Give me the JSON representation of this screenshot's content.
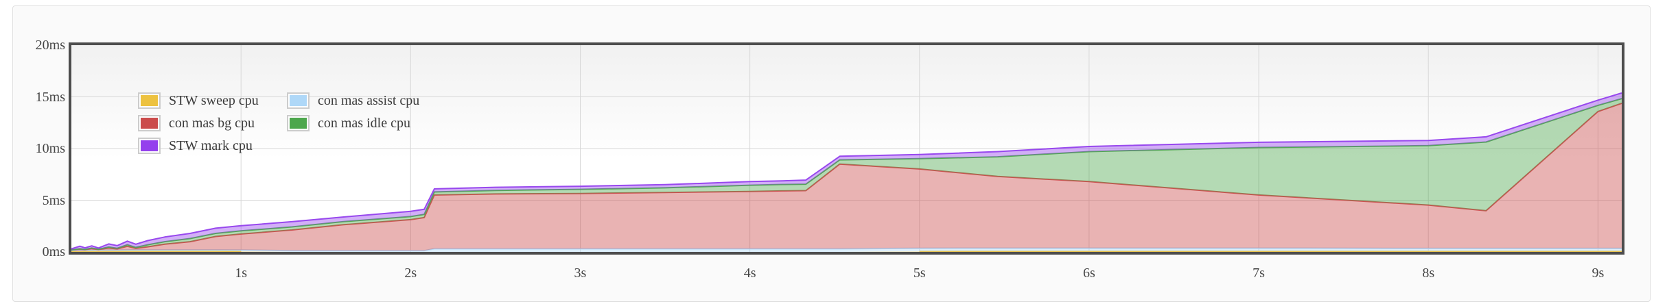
{
  "y_axis": {
    "ticks": [
      {
        "v": 20,
        "label": "20ms"
      },
      {
        "v": 15,
        "label": "15ms"
      },
      {
        "v": 10,
        "label": "10ms"
      },
      {
        "v": 5,
        "label": "5ms"
      },
      {
        "v": 0,
        "label": "0ms"
      }
    ]
  },
  "x_axis": {
    "ticks": [
      {
        "v": 1,
        "label": "1s"
      },
      {
        "v": 2,
        "label": "2s"
      },
      {
        "v": 3,
        "label": "3s"
      },
      {
        "v": 4,
        "label": "4s"
      },
      {
        "v": 5,
        "label": "5s"
      },
      {
        "v": 6,
        "label": "6s"
      },
      {
        "v": 7,
        "label": "7s"
      },
      {
        "v": 8,
        "label": "8s"
      },
      {
        "v": 9,
        "label": "9s"
      }
    ]
  },
  "colors": {
    "plot_border": "#4d4d4d",
    "gridline": "#d7d7d7",
    "panel_background": "#fafafa",
    "panel_border": "#e0e0e0",
    "tick_text": "#454545"
  },
  "chart_data": {
    "type": "area",
    "stacked": true,
    "title": "",
    "xlabel": "",
    "ylabel": "",
    "xlim": [
      0,
      9.14
    ],
    "ylim": [
      0,
      20
    ],
    "grid": true,
    "legend_position": "top-left",
    "legend_columns": 2,
    "x": [
      0,
      0.05,
      0.08,
      0.12,
      0.16,
      0.22,
      0.27,
      0.33,
      0.38,
      0.45,
      0.55,
      0.7,
      0.85,
      1.0,
      1.3,
      1.6,
      2.0,
      2.08,
      2.14,
      2.5,
      3.0,
      3.5,
      4.0,
      4.19,
      4.33,
      4.53,
      5.0,
      5.46,
      6.0,
      7.0,
      8.0,
      8.34,
      9.0,
      9.14
    ],
    "series": [
      {
        "name": "STW sweep cpu",
        "color": "#EDC240",
        "values": [
          0.07,
          0.07,
          0.07,
          0.07,
          0.07,
          0.07,
          0.07,
          0.07,
          0.07,
          0.07,
          0.07,
          0.07,
          0.07,
          0.06,
          0,
          0,
          0,
          0,
          0,
          0,
          0,
          0,
          0,
          0,
          0,
          0,
          0.05,
          0.06,
          0.06,
          0.06,
          0.06,
          0.06,
          0.06,
          0.06
        ]
      },
      {
        "name": "con mas assist cpu",
        "color": "#AFD8F8",
        "values": [
          0.06,
          0.08,
          0.08,
          0.1,
          0.1,
          0.1,
          0.1,
          0.12,
          0.12,
          0.12,
          0.12,
          0.12,
          0.12,
          0.12,
          0.12,
          0.12,
          0.12,
          0.12,
          0.3,
          0.3,
          0.3,
          0.3,
          0.3,
          0.3,
          0.3,
          0.3,
          0.3,
          0.3,
          0.3,
          0.3,
          0.28,
          0.28,
          0.28,
          0.28
        ]
      },
      {
        "name": "con mas bg cpu",
        "color": "#CB4B4B",
        "values": [
          0.05,
          0.1,
          0.06,
          0.15,
          0.06,
          0.2,
          0.12,
          0.35,
          0.15,
          0.3,
          0.55,
          0.8,
          1.3,
          1.55,
          2.0,
          2.5,
          3.0,
          3.2,
          5.2,
          5.3,
          5.35,
          5.45,
          5.55,
          5.6,
          5.63,
          8.2,
          7.67,
          6.94,
          6.44,
          5.14,
          4.19,
          3.64,
          13.24,
          14.04
        ]
      },
      {
        "name": "con mas idle cpu",
        "color": "#4DA74D",
        "values": [
          0.02,
          0.05,
          0.03,
          0.06,
          0.03,
          0.1,
          0.06,
          0.15,
          0.1,
          0.2,
          0.25,
          0.3,
          0.3,
          0.3,
          0.3,
          0.3,
          0.3,
          0.3,
          0.3,
          0.35,
          0.4,
          0.45,
          0.6,
          0.62,
          0.62,
          0.4,
          1.0,
          1.9,
          2.9,
          4.6,
          5.75,
          6.65,
          0.6,
          0.45
        ]
      },
      {
        "name": "STW mark cpu",
        "color": "#9440ED",
        "values": [
          0.1,
          0.25,
          0.15,
          0.2,
          0.12,
          0.3,
          0.25,
          0.35,
          0.3,
          0.4,
          0.45,
          0.5,
          0.5,
          0.5,
          0.5,
          0.45,
          0.5,
          0.5,
          0.3,
          0.3,
          0.3,
          0.3,
          0.35,
          0.35,
          0.4,
          0.35,
          0.4,
          0.5,
          0.5,
          0.5,
          0.5,
          0.5,
          0.5,
          0.55
        ]
      }
    ]
  },
  "legend_order": [
    0,
    1,
    2,
    3,
    4
  ]
}
